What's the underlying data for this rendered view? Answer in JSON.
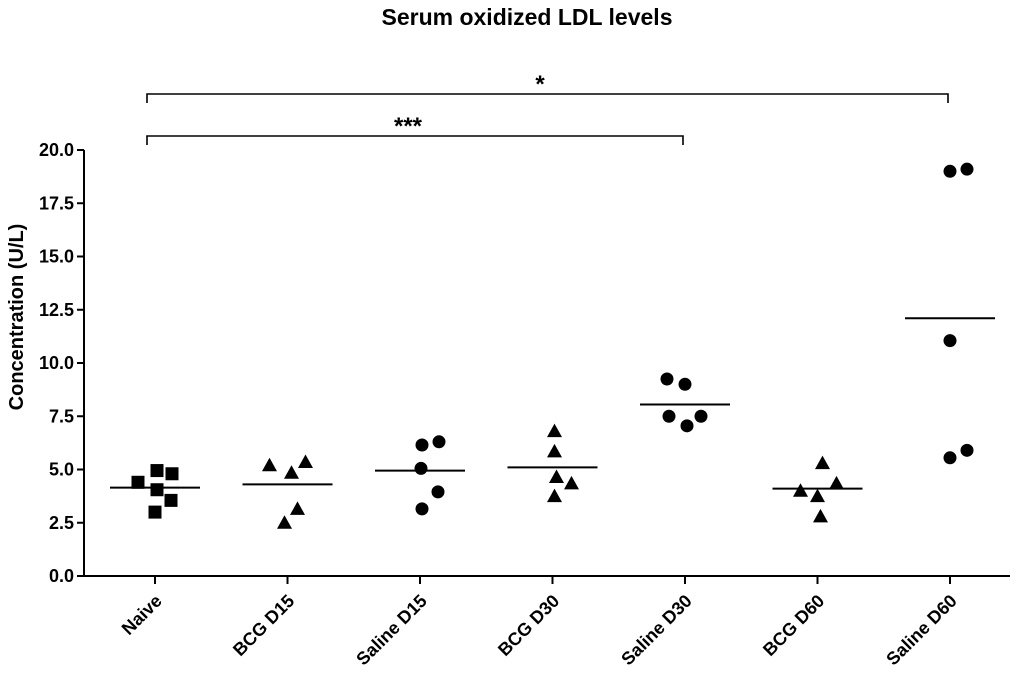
{
  "chart_data": {
    "type": "scatter",
    "title": "Serum oxidized LDL levels",
    "xlabel": "",
    "ylabel": "Concentration (U/L)",
    "ylim": [
      0,
      20
    ],
    "yticks": [
      "0.0",
      "2.5",
      "5.0",
      "7.5",
      "10.0",
      "12.5",
      "15.0",
      "17.5",
      "20.0"
    ],
    "grid": false,
    "categories": [
      "Naive",
      "BCG D15",
      "Saline D15",
      "BCG D30",
      "Saline D30",
      "BCG D60",
      "Saline D60"
    ],
    "groups": [
      {
        "category": "Naive",
        "marker": "square",
        "mean": 4.15,
        "points": [
          4.4,
          4.95,
          4.8,
          4.05,
          3.55,
          3.0
        ]
      },
      {
        "category": "BCG D15",
        "marker": "triangle",
        "mean": 4.3,
        "points": [
          5.2,
          4.85,
          5.35,
          2.5,
          3.15
        ]
      },
      {
        "category": "Saline D15",
        "marker": "circle",
        "mean": 4.95,
        "points": [
          6.15,
          6.3,
          5.05,
          3.95,
          3.15
        ]
      },
      {
        "category": "BCG D30",
        "marker": "triangle",
        "mean": 5.1,
        "points": [
          6.8,
          5.85,
          4.65,
          4.35,
          3.75
        ]
      },
      {
        "category": "Saline D30",
        "marker": "circle",
        "mean": 8.05,
        "points": [
          9.25,
          9.0,
          7.5,
          7.5,
          7.05
        ]
      },
      {
        "category": "BCG D60",
        "marker": "triangle",
        "mean": 4.1,
        "points": [
          5.3,
          4.35,
          4.0,
          3.75,
          2.8
        ]
      },
      {
        "category": "Saline D60",
        "marker": "circle",
        "mean": 12.1,
        "points": [
          19.0,
          19.1,
          11.05,
          5.55,
          5.9
        ]
      }
    ],
    "annotations": [
      {
        "from": "Naive",
        "to": "Saline D30",
        "label": "***"
      },
      {
        "from": "Naive",
        "to": "Saline D60",
        "label": "*"
      }
    ]
  }
}
